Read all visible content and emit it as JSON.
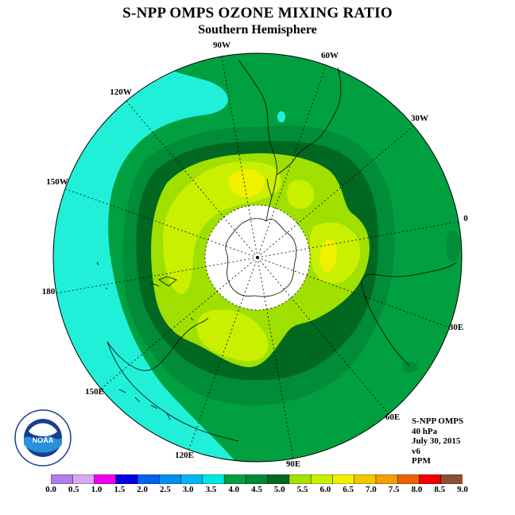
{
  "title": "S-NPP OMPS OZONE MIXING RATIO",
  "subtitle": "Southern Hemisphere",
  "longitude_labels": [
    "90W",
    "60W",
    "30W",
    "0",
    "30E",
    "60E",
    "90E",
    "120E",
    "150E",
    "180",
    "150W",
    "120W"
  ],
  "info": {
    "instrument": "S-NPP OMPS",
    "level": "40 hPa",
    "date": "July 30, 2015",
    "version": "v6",
    "units": "PPM"
  },
  "logo": {
    "text": "NOAA",
    "ring_text": "NATIONAL OCEANIC AND ATMOSPHERIC ADMINISTRATION · U.S. DEPARTMENT OF COMMERCE",
    "icon": "noaa-logo"
  },
  "colorbar": {
    "labels": [
      "0.0",
      "0.5",
      "1.0",
      "1.5",
      "2.0",
      "2.5",
      "3.0",
      "3.5",
      "4.0",
      "4.5",
      "5.0",
      "5.5",
      "6.0",
      "6.5",
      "7.0",
      "7.5",
      "8.0",
      "8.5",
      "9.0"
    ],
    "colors": [
      "#b07cf0",
      "#d8a8f0",
      "#f000f0",
      "#0000e0",
      "#0060f0",
      "#0090f0",
      "#00b8f0",
      "#00e8e0",
      "#00a040",
      "#008838",
      "#006820",
      "#a8e000",
      "#c8f000",
      "#f0f000",
      "#f0c800",
      "#f0a000",
      "#f06000",
      "#f00000",
      "#8c5030"
    ]
  },
  "colors": {
    "ring_4_5": "#00a040",
    "band_3_5_4_0": "#20f0d8",
    "band_4_0_4_5": "#008c38",
    "band_4_5_5_0": "#006820",
    "band_5_0_5_5": "#a0e000",
    "band_5_5_6_0": "#c8f000",
    "band_6_0_6_5": "#f0f000",
    "polar_night": "#ffffff"
  }
}
